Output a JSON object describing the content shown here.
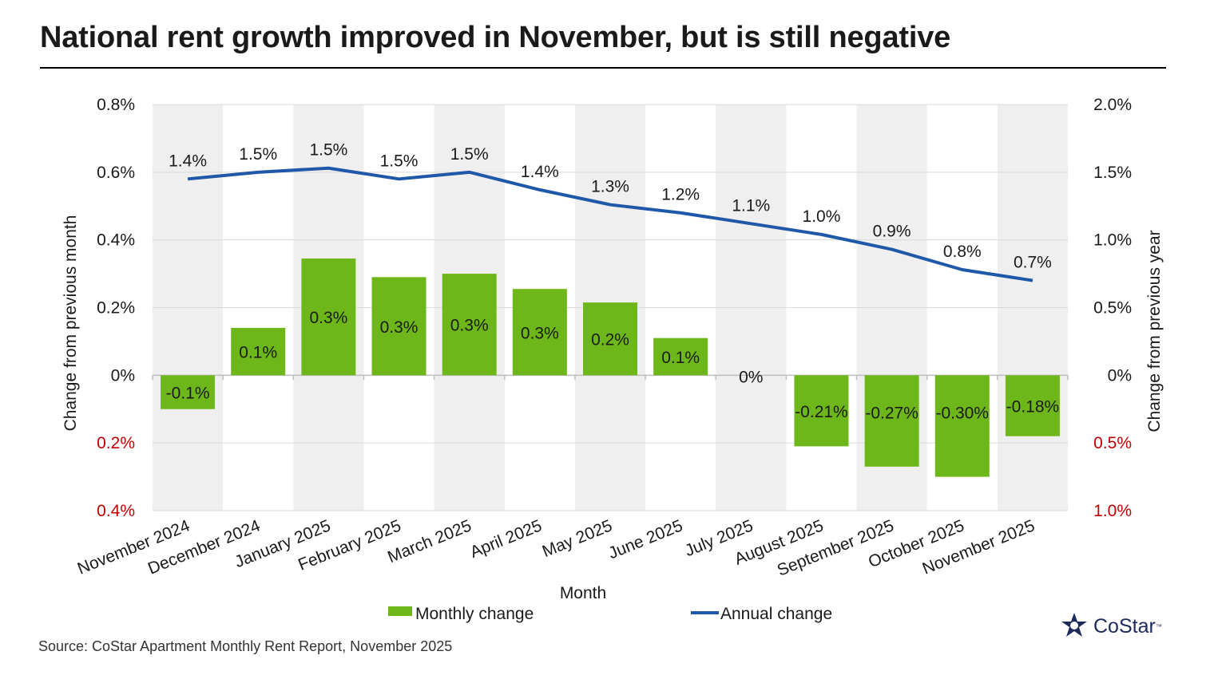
{
  "title": "National rent growth improved in November, but is still negative",
  "source": "Source: CoStar Apartment Monthly Rent Report, November 2025",
  "logo": {
    "text": "CoStar",
    "tm": "™"
  },
  "colors": {
    "bar": "#6eb71a",
    "line": "#1f58a8",
    "band": "#efefef",
    "negative_tick": "#c00000",
    "grid": "#d9d9d9"
  },
  "chart_data": {
    "type": "bar",
    "xlabel": "Month",
    "ylabel_left": "Change from previous month",
    "ylabel_right": "Change from previous year",
    "categories": [
      "November 2024",
      "December 2024",
      "January 2025",
      "February 2025",
      "March 2025",
      "April 2025",
      "May 2025",
      "June 2025",
      "July 2025",
      "August 2025",
      "September 2025",
      "October 2025",
      "November 2025"
    ],
    "series": [
      {
        "name": "Monthly change",
        "type": "bar",
        "axis": "left",
        "values": [
          -0.1,
          0.14,
          0.345,
          0.29,
          0.3,
          0.255,
          0.215,
          0.11,
          0.0,
          -0.21,
          -0.27,
          -0.3,
          -0.18
        ],
        "labels": [
          "-0.1%",
          "0.1%",
          "0.3%",
          "0.3%",
          "0.3%",
          "0.3%",
          "0.2%",
          "0.1%",
          "0%",
          "-0.21%",
          "-0.27%",
          "-0.30%",
          "-0.18%"
        ]
      },
      {
        "name": "Annual change",
        "type": "line",
        "axis": "right",
        "values": [
          1.45,
          1.5,
          1.53,
          1.45,
          1.5,
          1.37,
          1.26,
          1.2,
          1.12,
          1.04,
          0.93,
          0.78,
          0.7
        ],
        "labels": [
          "1.4%",
          "1.5%",
          "1.5%",
          "1.5%",
          "1.5%",
          "1.4%",
          "1.3%",
          "1.2%",
          "1.1%",
          "1.0%",
          "0.9%",
          "0.8%",
          "0.7%"
        ]
      }
    ],
    "y_left": {
      "min": -0.4,
      "max": 0.8,
      "ticks": [
        {
          "value": 0.8,
          "label": "0.8%",
          "negative": false
        },
        {
          "value": 0.6,
          "label": "0.6%",
          "negative": false
        },
        {
          "value": 0.4,
          "label": "0.4%",
          "negative": false
        },
        {
          "value": 0.2,
          "label": "0.2%",
          "negative": false
        },
        {
          "value": 0.0,
          "label": "0%",
          "negative": false
        },
        {
          "value": -0.2,
          "label": "0.2%",
          "negative": true
        },
        {
          "value": -0.4,
          "label": "0.4%",
          "negative": true
        }
      ]
    },
    "y_right": {
      "min": -1.0,
      "max": 2.0,
      "ticks": [
        {
          "value": 2.0,
          "label": "2.0%",
          "negative": false
        },
        {
          "value": 1.5,
          "label": "1.5%",
          "negative": false
        },
        {
          "value": 1.0,
          "label": "1.0%",
          "negative": false
        },
        {
          "value": 0.5,
          "label": "0.5%",
          "negative": false
        },
        {
          "value": 0.0,
          "label": "0%",
          "negative": false
        },
        {
          "value": -0.5,
          "label": "0.5%",
          "negative": true
        },
        {
          "value": -1.0,
          "label": "1.0%",
          "negative": true
        }
      ]
    },
    "grid": true,
    "alternating_bands": true,
    "legend": {
      "position": "bottom",
      "items": [
        "Monthly change",
        "Annual change"
      ]
    }
  }
}
